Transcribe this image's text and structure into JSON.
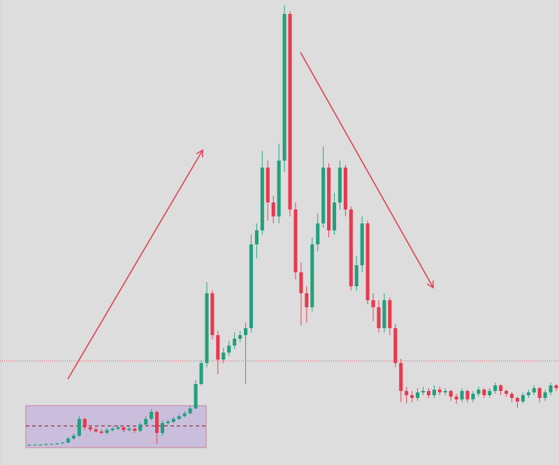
{
  "chart_data": {
    "type": "candlestick",
    "categories": [
      null,
      null,
      null,
      null,
      null,
      null,
      null,
      null,
      null,
      null,
      null,
      null,
      null,
      null,
      null,
      null,
      null,
      null,
      null,
      null,
      null,
      null,
      null,
      null,
      null,
      null,
      null,
      null,
      null,
      null,
      null,
      null,
      null,
      null,
      null,
      null,
      null,
      null,
      null,
      null,
      null,
      null,
      null,
      null,
      null,
      null,
      null,
      null,
      null,
      null,
      null,
      null,
      null,
      null,
      null,
      null,
      null,
      null,
      null,
      null,
      null,
      null,
      null,
      null,
      null,
      null,
      null,
      null,
      null,
      null,
      null,
      null,
      null,
      null,
      null,
      null,
      null,
      null,
      null,
      null,
      null,
      null,
      null,
      null,
      null,
      null,
      null,
      null,
      null,
      null,
      null,
      null,
      null,
      null,
      null,
      null
    ],
    "open": [
      28,
      29,
      29,
      29,
      30,
      30,
      31,
      32,
      38,
      42,
      66,
      54,
      51,
      48,
      46,
      50,
      52,
      54,
      50,
      52,
      49,
      58,
      66,
      76,
      46,
      60,
      62,
      66,
      70,
      74,
      81,
      116,
      146,
      246,
      186,
      151,
      161,
      171,
      181,
      186,
      196,
      316,
      336,
      426,
      376,
      356,
      436,
      646,
      366,
      276,
      246,
      226,
      316,
      346,
      426,
      336,
      376,
      426,
      366,
      256,
      286,
      346,
      236,
      226,
      196,
      236,
      196,
      146,
      106,
      100,
      96,
      104,
      106,
      100,
      108,
      104,
      106,
      98,
      94,
      106,
      94,
      102,
      108,
      100,
      106,
      114,
      106,
      102,
      96,
      91,
      100,
      104,
      110,
      96,
      104,
      114
    ],
    "high": [
      30,
      30,
      30,
      31,
      31,
      32,
      33,
      40,
      45,
      70,
      68,
      57,
      54,
      51,
      53,
      55,
      57,
      56,
      55,
      54,
      61,
      70,
      80,
      78,
      64,
      65,
      69,
      73,
      77,
      84,
      122,
      150,
      262,
      250,
      192,
      168,
      178,
      190,
      192,
      204,
      330,
      346,
      450,
      436,
      386,
      460,
      658,
      650,
      376,
      290,
      256,
      326,
      360,
      456,
      432,
      390,
      436,
      430,
      370,
      300,
      356,
      350,
      246,
      236,
      246,
      240,
      202,
      152,
      112,
      106,
      110,
      112,
      110,
      114,
      112,
      110,
      108,
      102,
      110,
      108,
      106,
      112,
      110,
      110,
      118,
      116,
      108,
      104,
      98,
      104,
      108,
      114,
      112,
      108,
      118,
      116
    ],
    "low": [
      27,
      28,
      28,
      28,
      29,
      29,
      30,
      31,
      36,
      40,
      50,
      48,
      46,
      44,
      44,
      48,
      50,
      47,
      48,
      46,
      47,
      56,
      64,
      30,
      42,
      58,
      60,
      64,
      68,
      72,
      80,
      114,
      140,
      180,
      130,
      146,
      156,
      166,
      176,
      116,
      190,
      296,
      330,
      350,
      346,
      346,
      420,
      356,
      266,
      200,
      204,
      220,
      306,
      340,
      326,
      330,
      366,
      356,
      250,
      250,
      276,
      230,
      206,
      190,
      190,
      186,
      140,
      90,
      88,
      90,
      92,
      100,
      96,
      96,
      100,
      100,
      92,
      88,
      90,
      90,
      90,
      98,
      96,
      96,
      102,
      100,
      98,
      90,
      82,
      88,
      96,
      100,
      90,
      92,
      100,
      106
    ],
    "close": [
      29,
      29,
      29,
      30,
      30,
      31,
      32,
      38,
      42,
      66,
      54,
      51,
      48,
      46,
      50,
      52,
      54,
      50,
      52,
      49,
      58,
      66,
      76,
      46,
      60,
      62,
      66,
      70,
      74,
      81,
      116,
      146,
      246,
      186,
      151,
      161,
      171,
      181,
      186,
      196,
      316,
      336,
      426,
      376,
      356,
      436,
      646,
      366,
      276,
      246,
      226,
      316,
      346,
      426,
      336,
      376,
      426,
      366,
      256,
      286,
      346,
      236,
      226,
      196,
      236,
      196,
      146,
      106,
      100,
      96,
      104,
      106,
      100,
      108,
      104,
      106,
      98,
      94,
      106,
      94,
      102,
      108,
      100,
      106,
      114,
      106,
      102,
      96,
      91,
      100,
      104,
      110,
      96,
      104,
      114,
      110
    ],
    "up_color": "#22a07e",
    "down_color": "#e8394f",
    "ylim": [
      0,
      666
    ]
  }
}
